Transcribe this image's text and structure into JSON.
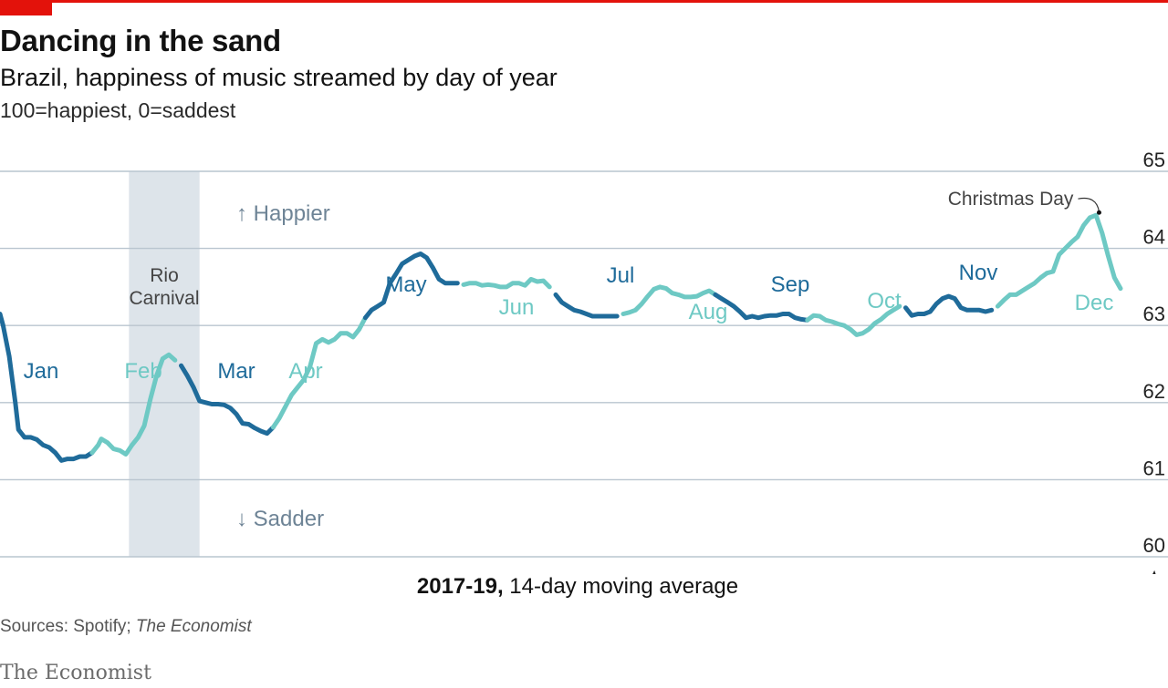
{
  "header": {
    "title": "Dancing in the sand",
    "subtitle": "Brazil, happiness of music streamed by day of year",
    "scale_note": "100=happiest, 0=saddest"
  },
  "footer": {
    "caption_bold": "2017-19,",
    "caption_rest": " 14-day moving average",
    "source_prefix": "Sources: Spotify; ",
    "source_italic": "The Economist",
    "brand": "The Economist"
  },
  "colors": {
    "accent_red": "#e3120b",
    "dark_line": "#1f6b9a",
    "light_line": "#6ec9c4",
    "shade": "#dde4ea",
    "grid": "#b9c5cf",
    "direction_text": "#6e8496"
  },
  "chart_data": {
    "type": "line",
    "ylim": [
      60,
      65
    ],
    "yticks": [
      60,
      61,
      62,
      63,
      64,
      65
    ],
    "xlim": [
      1,
      366
    ],
    "grid": true,
    "axis_side": "right",
    "x_unit": "day of year",
    "direction_labels": {
      "up": "↑ Happier",
      "down": "↓ Sadder"
    },
    "shaded_region": {
      "label": [
        "Rio",
        "Carnival"
      ],
      "x_start": 43,
      "x_end": 66
    },
    "annotation": {
      "label": "Christmas Day",
      "x": 359,
      "y": 64.43
    },
    "month_segments": [
      {
        "label": "Jan",
        "start_day": 1,
        "end_day": 31,
        "shade": "dark"
      },
      {
        "label": "Feb",
        "start_day": 31,
        "end_day": 59,
        "shade": "light"
      },
      {
        "label": "Mar",
        "start_day": 59,
        "end_day": 90,
        "shade": "dark"
      },
      {
        "label": "Apr",
        "start_day": 90,
        "end_day": 120,
        "shade": "light"
      },
      {
        "label": "May",
        "start_day": 120,
        "end_day": 151,
        "shade": "dark"
      },
      {
        "label": "Jun",
        "start_day": 151,
        "end_day": 181,
        "shade": "light"
      },
      {
        "label": "Jul",
        "start_day": 181,
        "end_day": 203,
        "shade": "dark"
      },
      {
        "label": "Aug",
        "start_day": 203,
        "end_day": 234,
        "shade": "light"
      },
      {
        "label": "Sep",
        "start_day": 234,
        "end_day": 264,
        "shade": "dark"
      },
      {
        "label": "Oct",
        "start_day": 264,
        "end_day": 295,
        "shade": "light"
      },
      {
        "label": "Nov",
        "start_day": 295,
        "end_day": 325,
        "shade": "dark"
      },
      {
        "label": "Dec",
        "start_day": 325,
        "end_day": 366,
        "shade": "light"
      }
    ],
    "series": [
      {
        "values": [
          [
            1,
            63.15
          ],
          [
            2,
            63.0
          ],
          [
            4,
            62.6
          ],
          [
            6,
            62.0
          ],
          [
            7,
            61.65
          ],
          [
            9,
            61.55
          ],
          [
            11,
            61.55
          ],
          [
            13,
            61.52
          ],
          [
            15,
            61.45
          ],
          [
            17,
            61.42
          ],
          [
            19,
            61.35
          ],
          [
            21,
            61.25
          ],
          [
            23,
            61.27
          ],
          [
            25,
            61.27
          ],
          [
            27,
            61.3
          ],
          [
            29,
            61.3
          ],
          [
            31,
            61.35
          ],
          [
            33,
            61.45
          ],
          [
            34,
            61.53
          ],
          [
            36,
            61.48
          ],
          [
            38,
            61.4
          ],
          [
            40,
            61.38
          ],
          [
            42,
            61.33
          ],
          [
            44,
            61.45
          ],
          [
            46,
            61.55
          ],
          [
            48,
            61.7
          ],
          [
            50,
            62.05
          ],
          [
            52,
            62.35
          ],
          [
            54,
            62.57
          ],
          [
            56,
            62.62
          ],
          [
            58,
            62.55
          ],
          [
            60,
            62.48
          ],
          [
            62,
            62.35
          ],
          [
            64,
            62.2
          ],
          [
            66,
            62.02
          ],
          [
            68,
            62.0
          ],
          [
            70,
            61.98
          ],
          [
            72,
            61.98
          ],
          [
            74,
            61.97
          ],
          [
            76,
            61.93
          ],
          [
            78,
            61.85
          ],
          [
            80,
            61.73
          ],
          [
            82,
            61.72
          ],
          [
            84,
            61.67
          ],
          [
            86,
            61.63
          ],
          [
            88,
            61.6
          ],
          [
            90,
            61.68
          ],
          [
            92,
            61.8
          ],
          [
            94,
            61.95
          ],
          [
            96,
            62.1
          ],
          [
            98,
            62.2
          ],
          [
            100,
            62.3
          ],
          [
            102,
            62.47
          ],
          [
            104,
            62.77
          ],
          [
            106,
            62.82
          ],
          [
            108,
            62.78
          ],
          [
            110,
            62.82
          ],
          [
            112,
            62.9
          ],
          [
            114,
            62.9
          ],
          [
            116,
            62.85
          ],
          [
            118,
            62.95
          ],
          [
            120,
            63.1
          ],
          [
            122,
            63.2
          ],
          [
            124,
            63.25
          ],
          [
            126,
            63.3
          ],
          [
            128,
            63.55
          ],
          [
            130,
            63.67
          ],
          [
            132,
            63.8
          ],
          [
            134,
            63.85
          ],
          [
            136,
            63.9
          ],
          [
            138,
            63.93
          ],
          [
            140,
            63.88
          ],
          [
            142,
            63.75
          ],
          [
            144,
            63.6
          ],
          [
            146,
            63.55
          ],
          [
            148,
            63.55
          ],
          [
            150,
            63.55
          ],
          [
            152,
            63.53
          ],
          [
            154,
            63.55
          ],
          [
            156,
            63.55
          ],
          [
            158,
            63.52
          ],
          [
            160,
            63.53
          ],
          [
            162,
            63.52
          ],
          [
            164,
            63.5
          ],
          [
            166,
            63.5
          ],
          [
            168,
            63.55
          ],
          [
            170,
            63.55
          ],
          [
            172,
            63.52
          ],
          [
            174,
            63.6
          ],
          [
            176,
            63.57
          ],
          [
            178,
            63.58
          ],
          [
            180,
            63.5
          ],
          [
            182,
            63.4
          ],
          [
            184,
            63.3
          ],
          [
            186,
            63.25
          ],
          [
            188,
            63.2
          ],
          [
            190,
            63.18
          ],
          [
            192,
            63.15
          ],
          [
            194,
            63.12
          ],
          [
            196,
            63.12
          ],
          [
            198,
            63.12
          ],
          [
            200,
            63.12
          ],
          [
            202,
            63.12
          ],
          [
            204,
            63.15
          ],
          [
            206,
            63.17
          ],
          [
            208,
            63.2
          ],
          [
            210,
            63.28
          ],
          [
            212,
            63.38
          ],
          [
            214,
            63.47
          ],
          [
            216,
            63.5
          ],
          [
            218,
            63.48
          ],
          [
            220,
            63.42
          ],
          [
            222,
            63.4
          ],
          [
            224,
            63.37
          ],
          [
            226,
            63.37
          ],
          [
            228,
            63.38
          ],
          [
            230,
            63.42
          ],
          [
            232,
            63.45
          ],
          [
            234,
            63.4
          ],
          [
            236,
            63.35
          ],
          [
            238,
            63.3
          ],
          [
            240,
            63.25
          ],
          [
            242,
            63.18
          ],
          [
            244,
            63.1
          ],
          [
            246,
            63.12
          ],
          [
            248,
            63.1
          ],
          [
            250,
            63.12
          ],
          [
            252,
            63.13
          ],
          [
            254,
            63.13
          ],
          [
            256,
            63.15
          ],
          [
            258,
            63.15
          ],
          [
            260,
            63.1
          ],
          [
            262,
            63.08
          ],
          [
            264,
            63.07
          ],
          [
            266,
            63.13
          ],
          [
            268,
            63.12
          ],
          [
            270,
            63.07
          ],
          [
            272,
            63.05
          ],
          [
            274,
            63.02
          ],
          [
            276,
            63.0
          ],
          [
            278,
            62.95
          ],
          [
            280,
            62.88
          ],
          [
            282,
            62.9
          ],
          [
            284,
            62.95
          ],
          [
            286,
            63.03
          ],
          [
            288,
            63.08
          ],
          [
            290,
            63.15
          ],
          [
            292,
            63.2
          ],
          [
            294,
            63.25
          ],
          [
            296,
            63.23
          ],
          [
            298,
            63.13
          ],
          [
            300,
            63.15
          ],
          [
            302,
            63.15
          ],
          [
            304,
            63.18
          ],
          [
            306,
            63.28
          ],
          [
            308,
            63.35
          ],
          [
            310,
            63.38
          ],
          [
            312,
            63.35
          ],
          [
            314,
            63.23
          ],
          [
            316,
            63.2
          ],
          [
            318,
            63.2
          ],
          [
            320,
            63.2
          ],
          [
            322,
            63.18
          ],
          [
            324,
            63.2
          ],
          [
            326,
            63.25
          ],
          [
            328,
            63.33
          ],
          [
            330,
            63.4
          ],
          [
            332,
            63.4
          ],
          [
            334,
            63.45
          ],
          [
            336,
            63.5
          ],
          [
            338,
            63.55
          ],
          [
            340,
            63.62
          ],
          [
            342,
            63.68
          ],
          [
            344,
            63.7
          ],
          [
            346,
            63.92
          ],
          [
            348,
            64.0
          ],
          [
            350,
            64.08
          ],
          [
            352,
            64.15
          ],
          [
            354,
            64.3
          ],
          [
            356,
            64.4
          ],
          [
            358,
            64.43
          ],
          [
            360,
            64.2
          ],
          [
            362,
            63.9
          ],
          [
            364,
            63.62
          ],
          [
            366,
            63.48
          ]
        ]
      }
    ]
  }
}
